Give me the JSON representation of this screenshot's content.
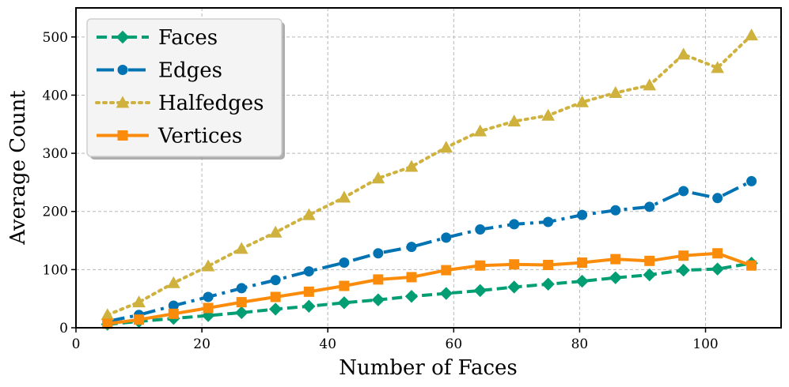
{
  "chart_data": {
    "type": "line",
    "title": "",
    "xlabel": "Number of Faces",
    "ylabel": "Average Count",
    "xlim": [
      0,
      112
    ],
    "ylim": [
      0,
      550
    ],
    "xticks": [
      0,
      20,
      40,
      60,
      80,
      100
    ],
    "yticks": [
      0,
      100,
      200,
      300,
      400,
      500
    ],
    "grid": true,
    "legend_position": "top-left",
    "x": [
      5,
      10,
      15.5,
      21,
      26.3,
      31.7,
      37,
      42.6,
      48,
      53.3,
      58.8,
      64.2,
      69.6,
      75,
      80.4,
      85.7,
      91.1,
      96.5,
      101.9,
      107.3
    ],
    "series": [
      {
        "name": "Faces",
        "color": "#029e73",
        "marker": "diamond",
        "linestyle": "dashed",
        "values": [
          6,
          11,
          16,
          21,
          26,
          32,
          37,
          43,
          48,
          54,
          59,
          64,
          70,
          75,
          80,
          86,
          91,
          99,
          101,
          111
        ]
      },
      {
        "name": "Edges",
        "color": "#0173b2",
        "marker": "circle",
        "linestyle": "dashdot",
        "values": [
          11,
          22,
          38,
          53,
          68,
          82,
          97,
          112,
          128,
          139,
          155,
          169,
          178,
          182,
          194,
          202,
          208,
          235,
          223,
          252
        ]
      },
      {
        "name": "Halfedges",
        "color": "#cfb13e",
        "marker": "triangle",
        "linestyle": "dotted",
        "values": [
          22,
          44,
          77,
          106,
          136,
          164,
          194,
          224,
          257,
          277,
          310,
          338,
          355,
          365,
          388,
          404,
          417,
          470,
          447,
          503
        ]
      },
      {
        "name": "Vertices",
        "color": "#fb8c0b",
        "marker": "square",
        "linestyle": "solid",
        "values": [
          7,
          14,
          24,
          34,
          44,
          53,
          62,
          72,
          83,
          87,
          99,
          107,
          109,
          108,
          112,
          118,
          115,
          124,
          128,
          107
        ]
      }
    ]
  }
}
